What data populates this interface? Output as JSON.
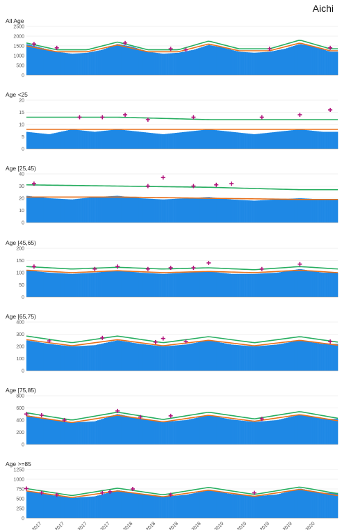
{
  "figure_title": "Aichi",
  "colors": {
    "bars": "#1e88e5",
    "expected_line": "#e8711c",
    "threshold_line": "#27ae60",
    "excess_marker": "#b0127a",
    "grid": "#e6e6e6"
  },
  "chart_data": [
    {
      "type": "bar",
      "title": "All Age",
      "ylim": [
        0,
        2500
      ],
      "yticks": [
        0,
        500,
        1000,
        1500,
        2000,
        2500
      ],
      "series": [
        {
          "name": "observed",
          "x": [
            "2017-01",
            "2017-03",
            "2017-05",
            "2017-07",
            "2017-09",
            "2017-11",
            "2018-01",
            "2018-03",
            "2018-05",
            "2018-07",
            "2018-09",
            "2018-11",
            "2019-01",
            "2019-03",
            "2019-05",
            "2019-07",
            "2019-09",
            "2019-11",
            "2020-01",
            "2020-03",
            "2020-05"
          ],
          "values": [
            1600,
            1400,
            1200,
            1100,
            1150,
            1300,
            1600,
            1450,
            1200,
            1100,
            1150,
            1300,
            1550,
            1400,
            1200,
            1150,
            1200,
            1350,
            1600,
            1450,
            1200
          ]
        },
        {
          "name": "expected",
          "x": [
            "2017-01",
            "2017-05",
            "2017-09",
            "2018-01",
            "2018-05",
            "2018-09",
            "2019-01",
            "2019-05",
            "2019-09",
            "2020-01",
            "2020-05"
          ],
          "values": [
            1500,
            1200,
            1200,
            1550,
            1200,
            1200,
            1600,
            1250,
            1250,
            1650,
            1250
          ]
        },
        {
          "name": "threshold",
          "x": [
            "2017-01",
            "2017-05",
            "2017-09",
            "2018-01",
            "2018-05",
            "2018-09",
            "2019-01",
            "2019-05",
            "2019-09",
            "2020-01",
            "2020-05"
          ],
          "values": [
            1650,
            1300,
            1300,
            1700,
            1300,
            1300,
            1750,
            1350,
            1350,
            1800,
            1350
          ]
        }
      ],
      "markers": [
        {
          "x": "2017-02",
          "y": 1600
        },
        {
          "x": "2017-05",
          "y": 1400
        },
        {
          "x": "2018-02",
          "y": 1650
        },
        {
          "x": "2018-08",
          "y": 1350
        },
        {
          "x": "2018-10",
          "y": 1300
        },
        {
          "x": "2019-09",
          "y": 1350
        },
        {
          "x": "2020-05",
          "y": 1400
        }
      ]
    },
    {
      "type": "bar",
      "title": "Age <25",
      "ylim": [
        0,
        20
      ],
      "yticks": [
        0,
        5,
        10,
        15,
        20
      ],
      "series": [
        {
          "name": "observed",
          "x": [
            "2017-01",
            "2017-04",
            "2017-07",
            "2017-10",
            "2018-01",
            "2018-04",
            "2018-07",
            "2018-10",
            "2019-01",
            "2019-04",
            "2019-07",
            "2019-10",
            "2020-01",
            "2020-04"
          ],
          "values": [
            7,
            6,
            8,
            7,
            8,
            7,
            6,
            7,
            8,
            7,
            6,
            7,
            8,
            7
          ]
        },
        {
          "name": "expected",
          "x": [
            "2017-01",
            "2018-01",
            "2019-01",
            "2020-01",
            "2020-06"
          ],
          "values": [
            8,
            8,
            8,
            8,
            8
          ]
        },
        {
          "name": "threshold",
          "x": [
            "2017-01",
            "2018-01",
            "2019-01",
            "2020-01",
            "2020-06"
          ],
          "values": [
            13,
            13,
            12,
            12,
            12
          ]
        }
      ],
      "markers": [
        {
          "x": "2017-08",
          "y": 13
        },
        {
          "x": "2017-11",
          "y": 13
        },
        {
          "x": "2018-02",
          "y": 14
        },
        {
          "x": "2018-05",
          "y": 12
        },
        {
          "x": "2018-11",
          "y": 13
        },
        {
          "x": "2019-08",
          "y": 13
        },
        {
          "x": "2020-01",
          "y": 14
        },
        {
          "x": "2020-05",
          "y": 16
        }
      ]
    },
    {
      "type": "bar",
      "title": "Age [25,45)",
      "ylim": [
        0,
        40
      ],
      "yticks": [
        0,
        10,
        20,
        30,
        40
      ],
      "series": [
        {
          "name": "observed",
          "x": [
            "2017-01",
            "2017-04",
            "2017-07",
            "2017-10",
            "2018-01",
            "2018-04",
            "2018-07",
            "2018-10",
            "2019-01",
            "2019-04",
            "2019-07",
            "2019-10",
            "2020-01",
            "2020-04"
          ],
          "values": [
            22,
            20,
            19,
            21,
            22,
            20,
            19,
            20,
            21,
            19,
            18,
            19,
            20,
            19
          ]
        },
        {
          "name": "expected",
          "x": [
            "2017-01",
            "2018-01",
            "2019-01",
            "2020-01",
            "2020-06"
          ],
          "values": [
            21,
            21,
            20,
            19,
            19
          ]
        },
        {
          "name": "threshold",
          "x": [
            "2017-01",
            "2018-01",
            "2019-01",
            "2020-01",
            "2020-06"
          ],
          "values": [
            31,
            30,
            29,
            27,
            27
          ]
        }
      ],
      "markers": [
        {
          "x": "2017-02",
          "y": 32
        },
        {
          "x": "2018-05",
          "y": 30
        },
        {
          "x": "2018-07",
          "y": 37
        },
        {
          "x": "2018-11",
          "y": 30
        },
        {
          "x": "2019-02",
          "y": 31
        },
        {
          "x": "2019-04",
          "y": 32
        }
      ]
    },
    {
      "type": "bar",
      "title": "Age [45,65)",
      "ylim": [
        0,
        200
      ],
      "yticks": [
        0,
        50,
        100,
        150,
        200
      ],
      "series": [
        {
          "name": "observed",
          "x": [
            "2017-01",
            "2017-04",
            "2017-07",
            "2017-10",
            "2018-01",
            "2018-04",
            "2018-07",
            "2018-10",
            "2019-01",
            "2019-04",
            "2019-07",
            "2019-10",
            "2020-01",
            "2020-04"
          ],
          "values": [
            110,
            100,
            95,
            100,
            110,
            100,
            95,
            100,
            105,
            95,
            95,
            100,
            115,
            100
          ]
        },
        {
          "name": "expected",
          "x": [
            "2017-01",
            "2017-07",
            "2018-01",
            "2018-07",
            "2019-01",
            "2019-07",
            "2020-01",
            "2020-06"
          ],
          "values": [
            110,
            100,
            108,
            100,
            105,
            100,
            110,
            100
          ]
        },
        {
          "name": "threshold",
          "x": [
            "2017-01",
            "2017-07",
            "2018-01",
            "2018-07",
            "2019-01",
            "2019-07",
            "2020-01",
            "2020-06"
          ],
          "values": [
            125,
            115,
            122,
            115,
            120,
            112,
            125,
            115
          ]
        }
      ],
      "markers": [
        {
          "x": "2017-02",
          "y": 125
        },
        {
          "x": "2017-10",
          "y": 115
        },
        {
          "x": "2018-01",
          "y": 125
        },
        {
          "x": "2018-05",
          "y": 115
        },
        {
          "x": "2018-08",
          "y": 120
        },
        {
          "x": "2018-11",
          "y": 120
        },
        {
          "x": "2019-01",
          "y": 140
        },
        {
          "x": "2019-08",
          "y": 115
        },
        {
          "x": "2020-01",
          "y": 135
        }
      ]
    },
    {
      "type": "bar",
      "title": "Age [65,75)",
      "ylim": [
        0,
        400
      ],
      "yticks": [
        0,
        100,
        200,
        300,
        400
      ],
      "series": [
        {
          "name": "observed",
          "x": [
            "2017-01",
            "2017-04",
            "2017-07",
            "2017-10",
            "2018-01",
            "2018-04",
            "2018-07",
            "2018-10",
            "2019-01",
            "2019-04",
            "2019-07",
            "2019-10",
            "2020-01",
            "2020-04"
          ],
          "values": [
            250,
            220,
            200,
            210,
            250,
            220,
            200,
            215,
            250,
            215,
            200,
            215,
            250,
            220
          ]
        },
        {
          "name": "expected",
          "x": [
            "2017-01",
            "2017-07",
            "2018-01",
            "2018-07",
            "2019-01",
            "2019-07",
            "2020-01",
            "2020-06"
          ],
          "values": [
            255,
            205,
            255,
            205,
            250,
            205,
            250,
            210
          ]
        },
        {
          "name": "threshold",
          "x": [
            "2017-01",
            "2017-07",
            "2018-01",
            "2018-07",
            "2019-01",
            "2019-07",
            "2020-01",
            "2020-06"
          ],
          "values": [
            285,
            230,
            285,
            230,
            280,
            230,
            280,
            235
          ]
        }
      ],
      "markers": [
        {
          "x": "2017-04",
          "y": 245
        },
        {
          "x": "2017-11",
          "y": 270
        },
        {
          "x": "2018-06",
          "y": 235
        },
        {
          "x": "2018-07",
          "y": 265
        },
        {
          "x": "2018-10",
          "y": 240
        },
        {
          "x": "2020-05",
          "y": 240
        }
      ]
    },
    {
      "type": "bar",
      "title": "Age [75,85)",
      "ylim": [
        0,
        800
      ],
      "yticks": [
        0,
        200,
        400,
        600,
        800
      ],
      "series": [
        {
          "name": "observed",
          "x": [
            "2017-01",
            "2017-04",
            "2017-07",
            "2017-10",
            "2018-01",
            "2018-04",
            "2018-07",
            "2018-10",
            "2019-01",
            "2019-04",
            "2019-07",
            "2019-10",
            "2020-01",
            "2020-04"
          ],
          "values": [
            480,
            420,
            360,
            380,
            500,
            420,
            370,
            400,
            480,
            410,
            370,
            400,
            490,
            420
          ]
        },
        {
          "name": "expected",
          "x": [
            "2017-01",
            "2017-07",
            "2018-01",
            "2018-07",
            "2019-01",
            "2019-07",
            "2020-01",
            "2020-06"
          ],
          "values": [
            470,
            360,
            480,
            370,
            480,
            380,
            490,
            390
          ]
        },
        {
          "name": "threshold",
          "x": [
            "2017-01",
            "2017-07",
            "2018-01",
            "2018-07",
            "2019-01",
            "2019-07",
            "2020-01",
            "2020-06"
          ],
          "values": [
            520,
            400,
            530,
            410,
            530,
            420,
            540,
            430
          ]
        }
      ],
      "markers": [
        {
          "x": "2017-01",
          "y": 500
        },
        {
          "x": "2017-03",
          "y": 480
        },
        {
          "x": "2017-06",
          "y": 400
        },
        {
          "x": "2018-01",
          "y": 550
        },
        {
          "x": "2018-04",
          "y": 450
        },
        {
          "x": "2018-08",
          "y": 470
        },
        {
          "x": "2019-08",
          "y": 420
        }
      ]
    },
    {
      "type": "bar",
      "title": "Age >=85",
      "ylim": [
        0,
        1250
      ],
      "yticks": [
        0,
        250,
        500,
        750,
        1000,
        1250
      ],
      "series": [
        {
          "name": "observed",
          "x": [
            "2017-01",
            "2017-04",
            "2017-07",
            "2017-10",
            "2018-01",
            "2018-04",
            "2018-07",
            "2018-10",
            "2019-01",
            "2019-04",
            "2019-07",
            "2019-10",
            "2020-01",
            "2020-04"
          ],
          "values": [
            700,
            600,
            520,
            560,
            720,
            620,
            550,
            600,
            720,
            620,
            560,
            610,
            760,
            650
          ]
        },
        {
          "name": "expected",
          "x": [
            "2017-01",
            "2017-07",
            "2018-01",
            "2018-07",
            "2019-01",
            "2019-07",
            "2020-01",
            "2020-06"
          ],
          "values": [
            700,
            530,
            700,
            550,
            720,
            560,
            740,
            580
          ]
        },
        {
          "name": "threshold",
          "x": [
            "2017-01",
            "2017-07",
            "2018-01",
            "2018-07",
            "2019-01",
            "2019-07",
            "2020-01",
            "2020-06"
          ],
          "values": [
            760,
            580,
            770,
            600,
            790,
            610,
            800,
            630
          ]
        }
      ],
      "markers": [
        {
          "x": "2017-01",
          "y": 760
        },
        {
          "x": "2017-03",
          "y": 650
        },
        {
          "x": "2017-05",
          "y": 600
        },
        {
          "x": "2017-11",
          "y": 650
        },
        {
          "x": "2017-12",
          "y": 680
        },
        {
          "x": "2018-03",
          "y": 750
        },
        {
          "x": "2018-08",
          "y": 600
        },
        {
          "x": "2019-07",
          "y": 650
        }
      ]
    }
  ],
  "x_axis": {
    "tick_labels": [
      "Mar 2017",
      "Jun 2017",
      "Sep 2017",
      "Dec 2017",
      "Mar 2018",
      "Jun 2018",
      "Sep 2018",
      "Dec 2018",
      "Mar 2019",
      "Jun 2019",
      "Sep 2019",
      "Dec 2019",
      "Mar 2020"
    ],
    "tick_values": [
      "2017-03",
      "2017-06",
      "2017-09",
      "2017-12",
      "2018-03",
      "2018-06",
      "2018-09",
      "2018-12",
      "2019-03",
      "2019-06",
      "2019-09",
      "2019-12",
      "2020-03"
    ],
    "range": [
      "2017-01",
      "2020-06"
    ]
  }
}
